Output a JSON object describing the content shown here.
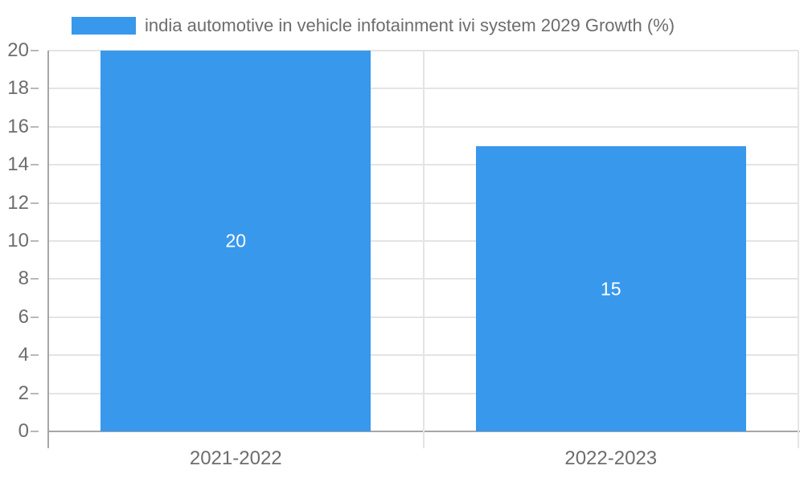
{
  "legend": {
    "label": "india automotive in vehicle infotainment ivi system 2029 Growth (%)",
    "swatch_color": "#3898EC"
  },
  "chart_data": {
    "type": "bar",
    "title": "",
    "categories": [
      "2021-2022",
      "2022-2023"
    ],
    "series": [
      {
        "name": "india automotive in vehicle infotainment ivi system 2029 Growth (%)",
        "values": [
          20,
          15
        ]
      }
    ],
    "bar_value_labels": [
      "20",
      "15"
    ],
    "xlabel": "",
    "ylabel": "",
    "ylim": [
      0,
      20
    ],
    "yticks": [
      0,
      2,
      4,
      6,
      8,
      10,
      12,
      14,
      16,
      18,
      20
    ],
    "grid": true,
    "legend_position": "top-left",
    "colors": {
      "bar": "#3898EC",
      "grid": "#e4e4e4",
      "axis": "#a6a6a6",
      "tick": "#b8b8b8",
      "text": "#6d6d6d",
      "bar_label": "#ffffff",
      "background": "#ffffff"
    }
  }
}
